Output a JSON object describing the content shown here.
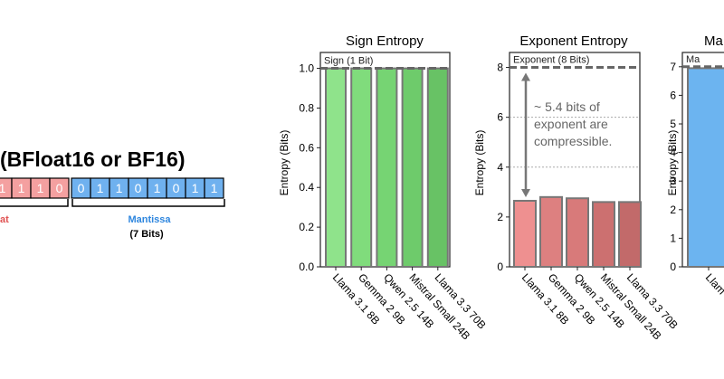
{
  "format_panel": {
    "title": "(BFloat16 or BF16)",
    "exponent_bits_visible": [
      "1",
      "1",
      "1",
      "0"
    ],
    "mantissa_bits": [
      "0",
      "1",
      "1",
      "0",
      "1",
      "0",
      "1",
      "1"
    ],
    "exponent_label_partial": "at",
    "mantissa_label": "Mantissa",
    "mantissa_bits_label": "(7 Bits)",
    "colors": {
      "exponent_fill": "#f4a0a0",
      "exponent_text": "#e05252",
      "mantissa_fill": "#6fb1ef",
      "mantissa_text": "#2e86de"
    }
  },
  "chart_data": [
    {
      "type": "bar",
      "title": "Sign Entropy",
      "ylabel": "Entropy (Bits)",
      "categories": [
        "Llama 3.1 8B",
        "Gemma 2 9B",
        "Qwen 2.5 14B",
        "Mistral Small 24B",
        "Llama 3.3 70B"
      ],
      "values": [
        1.0,
        1.0,
        1.0,
        1.0,
        1.0
      ],
      "ylim": [
        0,
        1.08
      ],
      "yticks": [
        "0.0",
        "0.2",
        "0.4",
        "0.6",
        "0.8",
        "1.0"
      ],
      "ytick_values": [
        0,
        0.2,
        0.4,
        0.6,
        0.8,
        1.0
      ],
      "reference_line": {
        "label": "Sign (1 Bit)",
        "value": 1.0
      },
      "colors": [
        "#8fe38b",
        "#80dc7c",
        "#76d473",
        "#6ecb6b",
        "#68c265"
      ],
      "grid": false
    },
    {
      "type": "bar",
      "title": "Exponent Entropy",
      "ylabel": "Entropy (Bits)",
      "categories": [
        "Llama 3.1 8B",
        "Gemma 2 9B",
        "Qwen 2.5 14B",
        "Mistral Small 24B",
        "Llama 3.3 70B"
      ],
      "values": [
        2.65,
        2.8,
        2.75,
        2.6,
        2.6
      ],
      "ylim": [
        0,
        8.6
      ],
      "yticks": [
        "0",
        "2",
        "4",
        "6",
        "8"
      ],
      "ytick_values": [
        0,
        2,
        4,
        6,
        8
      ],
      "reference_line": {
        "label": "Exponent (8 Bits)",
        "value": 8
      },
      "dotted_lines": [
        6,
        4
      ],
      "annotation": {
        "lines": [
          "~ 5.4 bits of",
          "exponent are",
          "compressible."
        ],
        "from": 2.65,
        "to": 8
      },
      "colors": [
        "#ee9090",
        "#dd8080",
        "#d87a7a",
        "#cc7070",
        "#c26a6a"
      ],
      "grid": false
    },
    {
      "type": "bar",
      "title": "Ma",
      "ylabel": "Entropy (Bits)",
      "categories": [
        "Llam"
      ],
      "values": [
        6.95
      ],
      "ylim": [
        0,
        7.5
      ],
      "yticks": [
        "0",
        "1",
        "2",
        "3",
        "4",
        "5",
        "6",
        "7"
      ],
      "ytick_values": [
        0,
        1,
        2,
        3,
        4,
        5,
        6,
        7
      ],
      "reference_line": {
        "label": "Ma",
        "value": 7
      },
      "colors": [
        "#6cb4f0"
      ],
      "grid": false
    }
  ]
}
